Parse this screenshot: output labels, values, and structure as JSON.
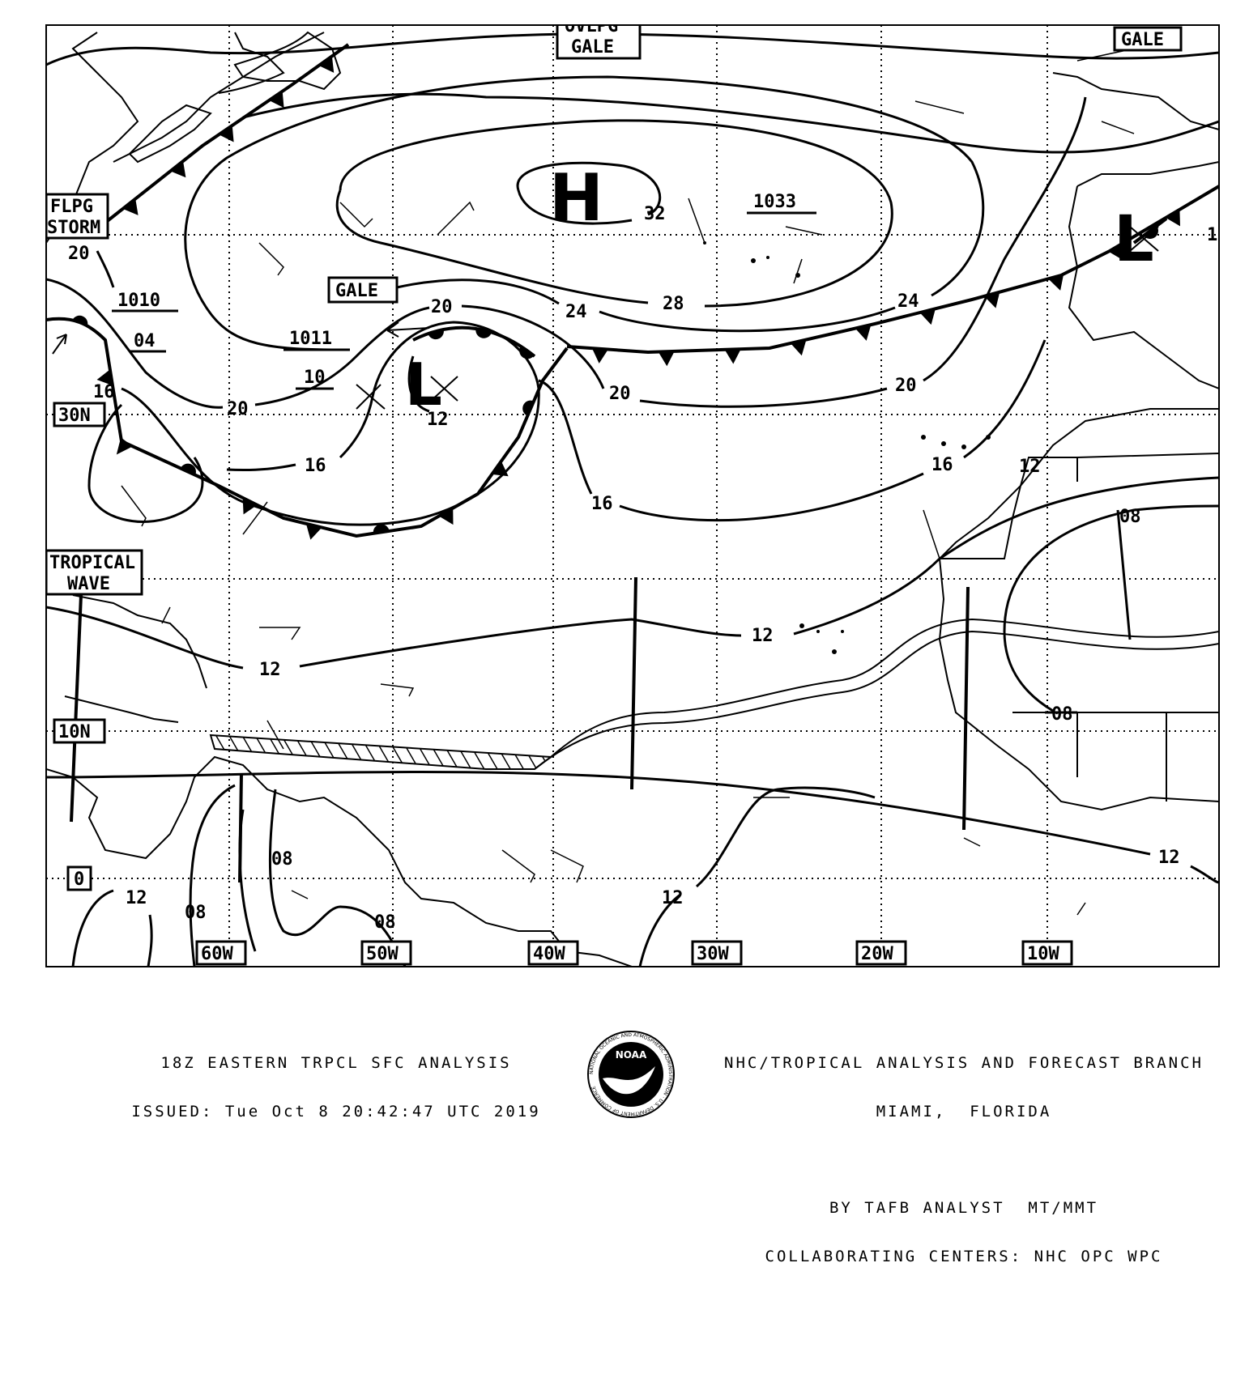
{
  "map": {
    "lon_labels": [
      "60W",
      "50W",
      "40W",
      "30W",
      "20W",
      "10W"
    ],
    "lat_labels": [
      "30N",
      "10N",
      "0"
    ],
    "boxed_labels": {
      "ovlpg_gale": [
        "OVLPG",
        "GALE"
      ],
      "gale_ne": "GALE",
      "flpg_storm": [
        "FLPG",
        "STORM"
      ],
      "gale_central": "GALE",
      "tropical_wave": [
        "TROPICAL",
        "WAVE"
      ]
    },
    "pressure_centers": [
      {
        "symbol": "H",
        "value": "1033"
      },
      {
        "symbol": "L",
        "value": "1011"
      },
      {
        "symbol": "L",
        "value": ""
      }
    ],
    "underlined_values": [
      "1033",
      "1011",
      "1010",
      "04",
      "10"
    ],
    "isobar_labels": [
      "32",
      "28",
      "24",
      "24",
      "20",
      "20",
      "20",
      "20",
      "20",
      "16",
      "16",
      "16",
      "16",
      "12",
      "12",
      "12",
      "12",
      "12",
      "12",
      "12",
      "08",
      "08",
      "08",
      "08",
      "08",
      "1"
    ]
  },
  "footer": {
    "left_line1": "18Z EASTERN TRPCL SFC ANALYSIS",
    "left_line2": "ISSUED: Tue Oct 8 20:42:47 UTC 2019",
    "right_line1": "NHC/TROPICAL ANALYSIS AND FORECAST BRANCH",
    "right_line2": "MIAMI,  FLORIDA",
    "right_line3": "BY TAFB ANALYST  MT/MMT",
    "right_line4": "COLLABORATING CENTERS: NHC OPC WPC",
    "logo": {
      "center": "NOAA",
      "ring": "NATIONAL OCEANIC AND ATMOSPHERIC ADMINISTRATION · U.S. DEPARTMENT OF COMMERCE"
    }
  },
  "colors": {
    "ink": "#000000",
    "background": "#ffffff"
  }
}
